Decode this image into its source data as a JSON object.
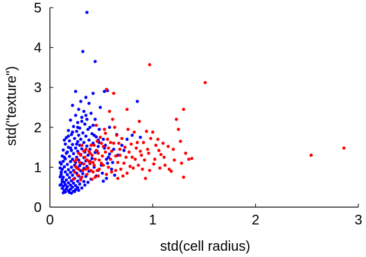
{
  "chart_data": {
    "type": "scatter",
    "xlabel": "std(cell radius)",
    "ylabel": "std(\"texture\")",
    "xlim": [
      0,
      3
    ],
    "ylim": [
      0,
      5
    ],
    "xticks": [
      0,
      1,
      2,
      3
    ],
    "xtick_labels": [
      "0",
      "1",
      "2",
      "3"
    ],
    "yticks": [
      0,
      1,
      2,
      3,
      4,
      5
    ],
    "ytick_labels": [
      "0",
      "1",
      "2",
      "3",
      "4",
      "5"
    ],
    "grid": false,
    "series": [
      {
        "color": "#0000ff",
        "points": [
          [
            0.36,
            4.88
          ],
          [
            0.32,
            3.9
          ],
          [
            0.44,
            3.65
          ],
          [
            0.25,
            2.9
          ],
          [
            0.42,
            2.85
          ],
          [
            0.35,
            2.75
          ],
          [
            0.3,
            2.65
          ],
          [
            0.38,
            2.6
          ],
          [
            0.22,
            2.55
          ],
          [
            0.28,
            2.45
          ],
          [
            0.33,
            2.4
          ],
          [
            0.4,
            2.35
          ],
          [
            0.25,
            2.3
          ],
          [
            0.31,
            2.25
          ],
          [
            0.36,
            2.2
          ],
          [
            0.2,
            2.18
          ],
          [
            0.27,
            2.12
          ],
          [
            0.34,
            2.08
          ],
          [
            0.42,
            2.05
          ],
          [
            0.23,
            2.02
          ],
          [
            0.29,
            1.98
          ],
          [
            0.37,
            1.95
          ],
          [
            0.18,
            1.92
          ],
          [
            0.26,
            1.9
          ],
          [
            0.32,
            1.86
          ],
          [
            0.41,
            1.84
          ],
          [
            0.21,
            1.82
          ],
          [
            0.28,
            1.8
          ],
          [
            0.35,
            1.78
          ],
          [
            0.45,
            1.76
          ],
          [
            0.16,
            1.74
          ],
          [
            0.24,
            1.72
          ],
          [
            0.3,
            1.7
          ],
          [
            0.38,
            1.68
          ],
          [
            0.19,
            1.66
          ],
          [
            0.27,
            1.64
          ],
          [
            0.33,
            1.62
          ],
          [
            0.42,
            1.6
          ],
          [
            0.15,
            1.58
          ],
          [
            0.22,
            1.57
          ],
          [
            0.29,
            1.55
          ],
          [
            0.36,
            1.53
          ],
          [
            0.47,
            1.52
          ],
          [
            0.18,
            1.5
          ],
          [
            0.25,
            1.48
          ],
          [
            0.31,
            1.46
          ],
          [
            0.39,
            1.45
          ],
          [
            0.13,
            1.43
          ],
          [
            0.21,
            1.42
          ],
          [
            0.27,
            1.4
          ],
          [
            0.34,
            1.38
          ],
          [
            0.44,
            1.37
          ],
          [
            0.16,
            1.35
          ],
          [
            0.23,
            1.34
          ],
          [
            0.3,
            1.32
          ],
          [
            0.37,
            1.3
          ],
          [
            0.12,
            1.28
          ],
          [
            0.19,
            1.27
          ],
          [
            0.26,
            1.25
          ],
          [
            0.33,
            1.24
          ],
          [
            0.41,
            1.22
          ],
          [
            0.15,
            1.21
          ],
          [
            0.22,
            1.2
          ],
          [
            0.28,
            1.18
          ],
          [
            0.35,
            1.16
          ],
          [
            0.13,
            1.15
          ],
          [
            0.2,
            1.14
          ],
          [
            0.25,
            1.12
          ],
          [
            0.31,
            1.1
          ],
          [
            0.39,
            1.09
          ],
          [
            0.11,
            1.08
          ],
          [
            0.17,
            1.07
          ],
          [
            0.24,
            1.05
          ],
          [
            0.29,
            1.04
          ],
          [
            0.36,
            1.02
          ],
          [
            0.14,
            1.01
          ],
          [
            0.21,
            1.0
          ],
          [
            0.27,
            0.98
          ],
          [
            0.33,
            0.97
          ],
          [
            0.12,
            0.95
          ],
          [
            0.18,
            0.94
          ],
          [
            0.23,
            0.92
          ],
          [
            0.3,
            0.91
          ],
          [
            0.38,
            0.9
          ],
          [
            0.15,
            0.88
          ],
          [
            0.2,
            0.87
          ],
          [
            0.26,
            0.85
          ],
          [
            0.32,
            0.84
          ],
          [
            0.11,
            0.82
          ],
          [
            0.17,
            0.81
          ],
          [
            0.22,
            0.8
          ],
          [
            0.28,
            0.78
          ],
          [
            0.35,
            0.77
          ],
          [
            0.13,
            0.75
          ],
          [
            0.19,
            0.74
          ],
          [
            0.24,
            0.72
          ],
          [
            0.3,
            0.71
          ],
          [
            0.12,
            0.69
          ],
          [
            0.16,
            0.68
          ],
          [
            0.21,
            0.66
          ],
          [
            0.27,
            0.65
          ],
          [
            0.33,
            0.64
          ],
          [
            0.14,
            0.62
          ],
          [
            0.18,
            0.61
          ],
          [
            0.23,
            0.6
          ],
          [
            0.29,
            0.58
          ],
          [
            0.11,
            0.57
          ],
          [
            0.15,
            0.56
          ],
          [
            0.2,
            0.55
          ],
          [
            0.25,
            0.54
          ],
          [
            0.13,
            0.52
          ],
          [
            0.17,
            0.51
          ],
          [
            0.22,
            0.5
          ],
          [
            0.27,
            0.49
          ],
          [
            0.12,
            0.47
          ],
          [
            0.16,
            0.46
          ],
          [
            0.2,
            0.45
          ],
          [
            0.25,
            0.44
          ],
          [
            0.14,
            0.42
          ],
          [
            0.18,
            0.41
          ],
          [
            0.23,
            0.4
          ],
          [
            0.15,
            0.38
          ],
          [
            0.19,
            0.37
          ],
          [
            0.13,
            0.36
          ],
          [
            0.21,
            0.35
          ],
          [
            0.48,
            1.95
          ],
          [
            0.52,
            1.7
          ],
          [
            0.46,
            1.4
          ],
          [
            0.55,
            1.2
          ],
          [
            0.5,
            1.05
          ],
          [
            0.47,
            0.92
          ],
          [
            0.44,
            2.2
          ],
          [
            0.49,
            2.5
          ],
          [
            0.39,
            1.15
          ],
          [
            0.43,
            1.0
          ],
          [
            0.54,
            1.55
          ],
          [
            0.51,
            0.85
          ],
          [
            0.48,
            1.62
          ],
          [
            0.58,
            1.33
          ],
          [
            0.62,
            1.45
          ],
          [
            0.56,
            1.1
          ],
          [
            0.45,
            0.78
          ],
          [
            0.4,
            0.7
          ],
          [
            0.37,
            0.62
          ],
          [
            0.34,
            0.55
          ],
          [
            0.31,
            0.48
          ],
          [
            0.28,
            0.42
          ],
          [
            0.24,
            0.39
          ],
          [
            0.26,
            1.58
          ],
          [
            0.2,
            1.48
          ],
          [
            0.17,
            1.38
          ],
          [
            0.14,
            1.25
          ],
          [
            0.1,
            1.12
          ],
          [
            0.1,
            0.98
          ],
          [
            0.11,
            0.88
          ],
          [
            0.1,
            0.76
          ],
          [
            0.12,
            0.64
          ],
          [
            0.1,
            0.55
          ],
          [
            0.14,
            1.68
          ],
          [
            0.18,
            1.78
          ],
          [
            0.22,
            1.88
          ],
          [
            0.27,
            2.0
          ],
          [
            0.31,
            2.15
          ],
          [
            0.35,
            2.3
          ],
          [
            0.39,
            2.0
          ],
          [
            0.43,
            1.8
          ],
          [
            0.47,
            1.68
          ],
          [
            0.53,
            1.48
          ],
          [
            0.57,
            1.25
          ],
          [
            0.61,
            1.12
          ],
          [
            0.66,
            1.3
          ],
          [
            0.7,
            1.55
          ],
          [
            0.75,
            1.7
          ],
          [
            0.72,
            1.42
          ],
          [
            0.8,
            1.8
          ],
          [
            0.85,
            2.65
          ],
          [
            0.88,
            1.75
          ],
          [
            0.6,
            0.95
          ],
          [
            0.63,
            0.8
          ],
          [
            0.55,
            0.72
          ],
          [
            0.52,
            0.65
          ],
          [
            0.58,
            2.0
          ],
          [
            0.65,
            1.82
          ],
          [
            0.53,
            2.9
          ],
          [
            0.56,
            2.92
          ]
        ]
      },
      {
        "color": "#ff0000",
        "points": [
          [
            2.86,
            1.48
          ],
          [
            2.54,
            1.3
          ],
          [
            1.51,
            3.12
          ],
          [
            0.97,
            3.57
          ],
          [
            1.3,
            2.45
          ],
          [
            1.23,
            2.2
          ],
          [
            1.25,
            1.95
          ],
          [
            1.32,
            1.35
          ],
          [
            1.38,
            1.22
          ],
          [
            1.3,
            0.75
          ],
          [
            1.18,
            0.9
          ],
          [
            1.12,
            1.05
          ],
          [
            1.08,
            1.32
          ],
          [
            1.03,
            1.55
          ],
          [
            0.98,
            1.72
          ],
          [
            0.95,
            1.45
          ],
          [
            0.92,
            1.18
          ],
          [
            0.9,
            0.95
          ],
          [
            0.88,
            1.4
          ],
          [
            0.85,
            1.62
          ],
          [
            0.82,
            1.88
          ],
          [
            0.8,
            1.25
          ],
          [
            0.78,
            1.02
          ],
          [
            0.75,
            0.85
          ],
          [
            0.73,
            1.5
          ],
          [
            0.7,
            1.72
          ],
          [
            0.68,
            1.3
          ],
          [
            0.66,
            1.12
          ],
          [
            0.64,
            0.92
          ],
          [
            0.62,
            1.6
          ],
          [
            0.6,
            1.4
          ],
          [
            0.59,
            1.2
          ],
          [
            0.57,
            1.0
          ],
          [
            0.55,
            0.82
          ],
          [
            0.54,
            1.85
          ],
          [
            0.52,
            1.52
          ],
          [
            0.51,
            1.28
          ],
          [
            0.5,
            1.1
          ],
          [
            0.48,
            0.95
          ],
          [
            0.47,
            0.78
          ],
          [
            0.46,
            1.65
          ],
          [
            0.45,
            1.42
          ],
          [
            0.44,
            1.2
          ],
          [
            0.43,
            1.05
          ],
          [
            0.42,
            0.88
          ],
          [
            0.41,
            0.7
          ],
          [
            0.4,
            1.55
          ],
          [
            0.39,
            1.35
          ],
          [
            0.38,
            1.15
          ],
          [
            0.37,
            0.98
          ],
          [
            0.36,
            0.82
          ],
          [
            0.35,
            1.45
          ],
          [
            0.34,
            1.25
          ],
          [
            0.33,
            1.08
          ],
          [
            0.32,
            0.92
          ],
          [
            0.31,
            0.75
          ],
          [
            0.3,
            1.3
          ],
          [
            0.29,
            1.12
          ],
          [
            0.28,
            0.95
          ],
          [
            0.27,
            0.8
          ],
          [
            0.26,
            1.2
          ],
          [
            0.25,
            1.02
          ],
          [
            0.24,
            0.88
          ],
          [
            0.23,
            0.7
          ],
          [
            0.62,
            2.85
          ],
          [
            0.55,
            2.95
          ],
          [
            0.75,
            2.45
          ],
          [
            0.87,
            2.15
          ],
          [
            0.94,
            1.9
          ],
          [
            1.0,
            1.88
          ],
          [
            1.05,
            1.7
          ],
          [
            1.1,
            1.6
          ],
          [
            1.15,
            1.52
          ],
          [
            1.2,
            1.45
          ],
          [
            1.27,
            1.65
          ],
          [
            1.02,
            1.2
          ],
          [
            1.07,
            0.98
          ],
          [
            0.97,
            0.92
          ],
          [
            0.93,
            0.72
          ],
          [
            0.86,
            1.05
          ],
          [
            0.83,
            1.2
          ],
          [
            0.77,
            1.38
          ],
          [
            0.72,
            1.1
          ],
          [
            0.69,
            0.95
          ],
          [
            0.67,
            1.6
          ],
          [
            0.65,
            1.8
          ],
          [
            0.63,
            2.0
          ],
          [
            0.61,
            2.2
          ],
          [
            0.58,
            2.4
          ],
          [
            0.56,
            1.7
          ],
          [
            0.53,
            1.95
          ],
          [
            0.49,
            1.75
          ],
          [
            0.47,
            1.35
          ],
          [
            0.45,
            2.05
          ],
          [
            0.43,
            1.55
          ],
          [
            0.41,
            1.3
          ],
          [
            0.39,
            1.1
          ],
          [
            0.76,
            1.95
          ],
          [
            0.79,
            1.58
          ],
          [
            0.84,
            1.48
          ],
          [
            0.89,
            1.3
          ],
          [
            0.91,
            1.62
          ],
          [
            0.96,
            1.35
          ],
          [
            1.01,
            1.08
          ],
          [
            1.06,
            1.42
          ],
          [
            1.11,
            1.25
          ],
          [
            1.16,
            0.95
          ],
          [
            1.21,
            1.18
          ],
          [
            1.28,
            1.1
          ],
          [
            1.35,
            1.2
          ],
          [
            0.71,
            0.78
          ],
          [
            0.66,
            0.72
          ],
          [
            0.6,
            0.88
          ],
          [
            0.57,
            1.48
          ],
          [
            0.52,
            1.05
          ],
          [
            0.48,
            1.18
          ],
          [
            0.44,
            0.75
          ],
          [
            0.4,
            0.92
          ],
          [
            0.36,
            1.18
          ],
          [
            0.33,
            1.4
          ],
          [
            0.3,
            0.68
          ],
          [
            0.74,
            1.25
          ],
          [
            0.81,
            0.98
          ],
          [
            0.68,
            1.45
          ],
          [
            0.64,
            1.28
          ],
          [
            0.59,
            1.62
          ],
          [
            0.54,
            1.38
          ],
          [
            0.5,
            1.6
          ],
          [
            0.46,
            0.92
          ],
          [
            0.42,
            1.12
          ],
          [
            0.38,
            1.4
          ],
          [
            0.35,
            0.95
          ],
          [
            0.31,
            1.55
          ],
          [
            0.28,
            1.35
          ],
          [
            0.26,
            0.98
          ],
          [
            0.24,
            1.15
          ]
        ]
      }
    ]
  }
}
